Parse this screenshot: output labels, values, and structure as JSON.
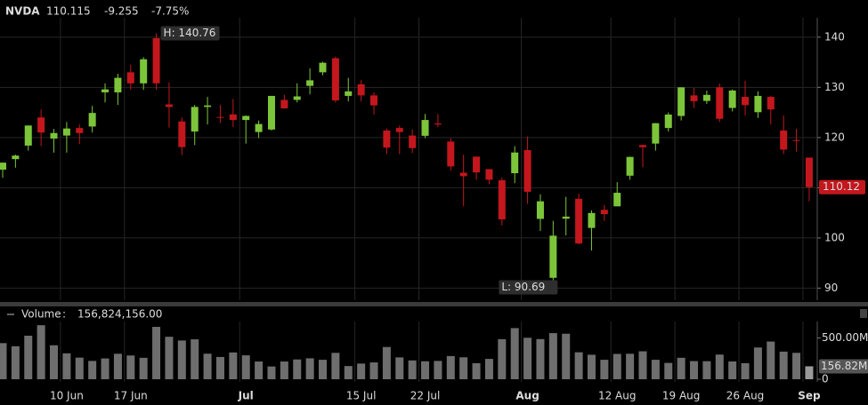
{
  "header": {
    "symbol": "NVDA",
    "last": 110.115,
    "change": -9.255,
    "change_pct": "-7.75%"
  },
  "chart_data": [
    {
      "type": "candlestick",
      "color_up": "#7cc53a",
      "color_down": "#c3171d",
      "categories": [
        null,
        null,
        null,
        null,
        null,
        "10 Jun",
        null,
        null,
        null,
        null,
        "17 Jun",
        null,
        null,
        null,
        null,
        null,
        null,
        null,
        null,
        "Jul",
        null,
        null,
        null,
        null,
        null,
        null,
        null,
        null,
        "15 Jul",
        null,
        null,
        null,
        null,
        "22 Jul",
        null,
        null,
        null,
        null,
        null,
        null,
        null,
        "Aug",
        null,
        null,
        null,
        null,
        null,
        null,
        "12 Aug",
        null,
        null,
        null,
        null,
        "19 Aug",
        null,
        null,
        null,
        null,
        "26 Aug",
        null,
        null,
        null,
        null,
        "Sep"
      ],
      "open": [
        113.6,
        115.7,
        118.4,
        124.0,
        119.8,
        120.4,
        121.9,
        122.2,
        129.0,
        129.0,
        133.0,
        130.8,
        139.8,
        126.6,
        123.2,
        121.2,
        126.1,
        124.1,
        124.6,
        123.5,
        121.1,
        121.6,
        127.5,
        127.5,
        130.3,
        133.0,
        135.8,
        128.3,
        130.6,
        128.4,
        121.4,
        121.9,
        120.4,
        120.35,
        122.8,
        119.2,
        113.0,
        116.2,
        113.7,
        111.5,
        112.9,
        117.5,
        103.8,
        92.06,
        103.84,
        107.8,
        102.0,
        105.6,
        106.3,
        112.4,
        118.5,
        118.8,
        121.9,
        124.3,
        128.4,
        127.3,
        130.0,
        125.9,
        128.1,
        125.05,
        128.1,
        121.4,
        119.5,
        116.0
      ],
      "high": [
        115.0,
        116.6,
        122.4,
        125.6,
        121.7,
        123.1,
        122.6,
        126.3,
        130.8,
        132.7,
        134.5,
        136.0,
        140.76,
        131.0,
        124.0,
        126.5,
        128.1,
        126.5,
        127.7,
        124.4,
        123.4,
        128.3,
        128.5,
        130.8,
        133.8,
        135.1,
        136.15,
        131.9,
        131.4,
        129.0,
        121.8,
        122.4,
        121.6,
        124.7,
        124.7,
        119.9,
        116.6,
        116.2,
        113.7,
        111.99,
        118.3,
        120.2,
        108.7,
        103.4,
        108.2,
        108.8,
        105.5,
        106.6,
        111.1,
        116.2,
        118.6,
        122.9,
        125.0,
        130.0,
        129.9,
        129.35,
        130.75,
        129.6,
        131.3,
        129.2,
        128.3,
        124.4,
        121.75,
        116.0
      ],
      "low": [
        112.0,
        114.0,
        117.4,
        118.3,
        117.0,
        117.0,
        118.7,
        121.0,
        127.0,
        126.5,
        129.5,
        129.5,
        129.5,
        122.0,
        116.5,
        118.5,
        122.6,
        122.9,
        122.1,
        118.8,
        119.9,
        121.4,
        125.8,
        127.0,
        128.6,
        132.4,
        127.0,
        127.2,
        127.2,
        124.6,
        116.7,
        116.7,
        116.9,
        119.9,
        122.1,
        113.4,
        106.3,
        111.6,
        110.7,
        102.5,
        110.9,
        106.8,
        101.4,
        90.69,
        100.5,
        98.7,
        97.5,
        103.4,
        106.3,
        111.6,
        114.1,
        117.4,
        121.2,
        123.4,
        125.9,
        126.7,
        123.1,
        125.2,
        124.4,
        123.9,
        122.6,
        116.7,
        117.2,
        107.3
      ],
      "close": [
        115.0,
        116.4,
        122.4,
        121.0,
        120.9,
        121.8,
        120.9,
        124.9,
        129.6,
        131.9,
        130.8,
        135.6,
        130.8,
        126.1,
        118.1,
        126.1,
        126.4,
        124.0,
        123.5,
        124.3,
        122.7,
        128.3,
        125.8,
        128.2,
        131.4,
        134.9,
        127.4,
        129.2,
        128.4,
        126.4,
        118.0,
        121.1,
        117.9,
        123.5,
        122.6,
        114.25,
        112.3,
        113.06,
        111.6,
        103.7,
        117.02,
        109.2,
        107.3,
        100.45,
        104.25,
        98.9,
        104.97,
        104.75,
        109.0,
        116.14,
        118.08,
        122.86,
        124.58,
        130.0,
        127.25,
        128.5,
        123.74,
        129.37,
        126.46,
        128.3,
        125.6,
        117.6,
        119.37,
        110.115
      ],
      "last_label": "110.12",
      "annotations": [
        "H: 140.76",
        "L: 90.69"
      ],
      "ylim": [
        87.6,
        147.4
      ],
      "yticks": [
        90,
        100,
        110,
        120,
        130,
        140
      ],
      "grid": true
    },
    {
      "type": "bar",
      "name": "Volume",
      "value_label": "156,824,156.00",
      "color": "#6e6e6e",
      "last_color": "#9a9a9a",
      "last_label": "156.82M",
      "values": [
        438000000,
        400000000,
        528000000,
        655000000,
        412000000,
        314000000,
        262000000,
        222000000,
        252000000,
        309000000,
        288000000,
        260000000,
        635000000,
        515000000,
        470000000,
        484000000,
        310000000,
        270000000,
        325000000,
        290000000,
        215000000,
        155000000,
        215000000,
        240000000,
        254000000,
        236000000,
        320000000,
        160000000,
        190000000,
        204000000,
        391000000,
        265000000,
        228000000,
        218000000,
        222000000,
        281000000,
        266000000,
        194000000,
        247000000,
        486000000,
        620000000,
        503000000,
        487000000,
        559000000,
        552000000,
        327000000,
        297000000,
        236000000,
        307000000,
        309000000,
        339000000,
        236000000,
        198000000,
        260000000,
        220000000,
        219000000,
        299000000,
        216000000,
        195000000,
        385000000,
        457000000,
        335000000,
        320000000,
        156824156
      ],
      "ylim": [
        0,
        700000000
      ],
      "yticks": [
        0,
        {
          "value": 500000000,
          "label": "500.00M"
        }
      ]
    }
  ]
}
